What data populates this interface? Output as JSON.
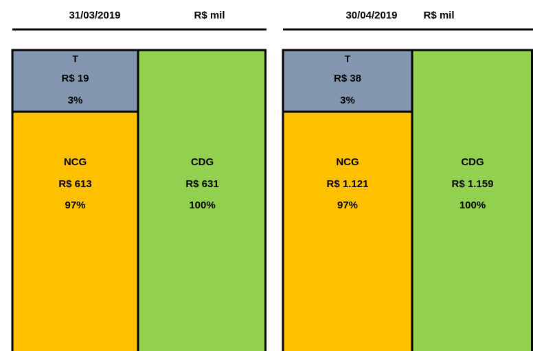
{
  "panels": [
    {
      "date": "31/03/2019",
      "unit": "R$ mil",
      "t": {
        "label": "T",
        "value": "R$ 19",
        "pct": "3%"
      },
      "ncg": {
        "label": "NCG",
        "value": "R$ 613",
        "pct": "97%"
      },
      "cdg": {
        "label": "CDG",
        "value": "R$ 631",
        "pct": "100%"
      }
    },
    {
      "date": "30/04/2019",
      "unit": "R$ mil",
      "t": {
        "label": "T",
        "value": "R$ 38",
        "pct": "3%"
      },
      "ncg": {
        "label": "NCG",
        "value": "R$ 1.121",
        "pct": "97%"
      },
      "cdg": {
        "label": "CDG",
        "value": "R$ 1.159",
        "pct": "100%"
      }
    }
  ]
}
